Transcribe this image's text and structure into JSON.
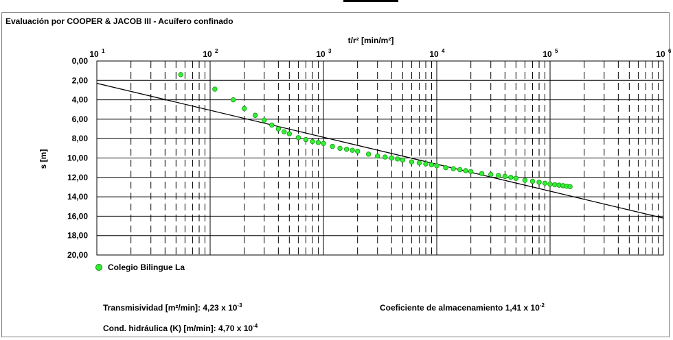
{
  "title": "Evaluación por COOPER & JACOB III - Acuífero confinado",
  "chart_data": {
    "type": "scatter",
    "x_axis": {
      "label": "t/r² [min/m²]",
      "scale": "log",
      "range": [
        10,
        1000000
      ],
      "position": "top",
      "ticks": [
        {
          "base": "10",
          "exp": "1"
        },
        {
          "base": "10",
          "exp": "2"
        },
        {
          "base": "10",
          "exp": "3"
        },
        {
          "base": "10",
          "exp": "4"
        },
        {
          "base": "10",
          "exp": "5"
        },
        {
          "base": "10",
          "exp": "6"
        }
      ]
    },
    "y_axis": {
      "label": "s [m]",
      "range": [
        0,
        20
      ],
      "inverted": true,
      "ticks": [
        "0,00",
        "2,00",
        "4,00",
        "6,00",
        "8,00",
        "10,00",
        "12,00",
        "14,00",
        "16,00",
        "18,00",
        "20,00"
      ]
    },
    "grid": true,
    "series": [
      {
        "name": "Colegio Bilingue La",
        "color": "#33ee33",
        "points": [
          [
            55,
            1.4
          ],
          [
            110,
            2.9
          ],
          [
            160,
            4.0
          ],
          [
            200,
            4.9
          ],
          [
            250,
            5.6
          ],
          [
            300,
            6.1
          ],
          [
            350,
            6.6
          ],
          [
            400,
            7.0
          ],
          [
            450,
            7.3
          ],
          [
            500,
            7.5
          ],
          [
            600,
            7.9
          ],
          [
            700,
            8.1
          ],
          [
            800,
            8.3
          ],
          [
            900,
            8.4
          ],
          [
            1000,
            8.5
          ],
          [
            1200,
            8.8
          ],
          [
            1400,
            9.0
          ],
          [
            1600,
            9.1
          ],
          [
            1800,
            9.2
          ],
          [
            2000,
            9.3
          ],
          [
            2500,
            9.6
          ],
          [
            3000,
            9.8
          ],
          [
            3500,
            9.9
          ],
          [
            4000,
            10.0
          ],
          [
            4500,
            10.1
          ],
          [
            5000,
            10.2
          ],
          [
            6000,
            10.4
          ],
          [
            7000,
            10.5
          ],
          [
            8000,
            10.6
          ],
          [
            9000,
            10.7
          ],
          [
            10000,
            10.8
          ],
          [
            12000,
            11.0
          ],
          [
            14000,
            11.1
          ],
          [
            16000,
            11.2
          ],
          [
            18000,
            11.3
          ],
          [
            20000,
            11.4
          ],
          [
            25000,
            11.6
          ],
          [
            30000,
            11.7
          ],
          [
            35000,
            11.8
          ],
          [
            40000,
            11.9
          ],
          [
            45000,
            12.0
          ],
          [
            50000,
            12.1
          ],
          [
            60000,
            12.3
          ],
          [
            70000,
            12.4
          ],
          [
            80000,
            12.5
          ],
          [
            90000,
            12.6
          ],
          [
            100000,
            12.7
          ],
          [
            110000,
            12.75
          ],
          [
            120000,
            12.8
          ],
          [
            130000,
            12.85
          ],
          [
            140000,
            12.9
          ],
          [
            150000,
            12.95
          ]
        ]
      }
    ],
    "fit_line": {
      "points": [
        [
          10,
          2.3
        ],
        [
          1000000,
          16.2
        ]
      ],
      "color": "#000000"
    }
  },
  "results": {
    "transmisividad": {
      "label": "Transmisividad [m²/min]:",
      "mantissa": "4,23 x 10",
      "exp": "-3"
    },
    "coeficiente": {
      "label": "Coeficiente de almacenamiento",
      "mantissa": "1,41 x 10",
      "exp": "-2"
    },
    "cond": {
      "label": "Cond. hidráulica (K) [m/min]:",
      "mantissa": "4,70 x 10",
      "exp": "-4"
    }
  }
}
